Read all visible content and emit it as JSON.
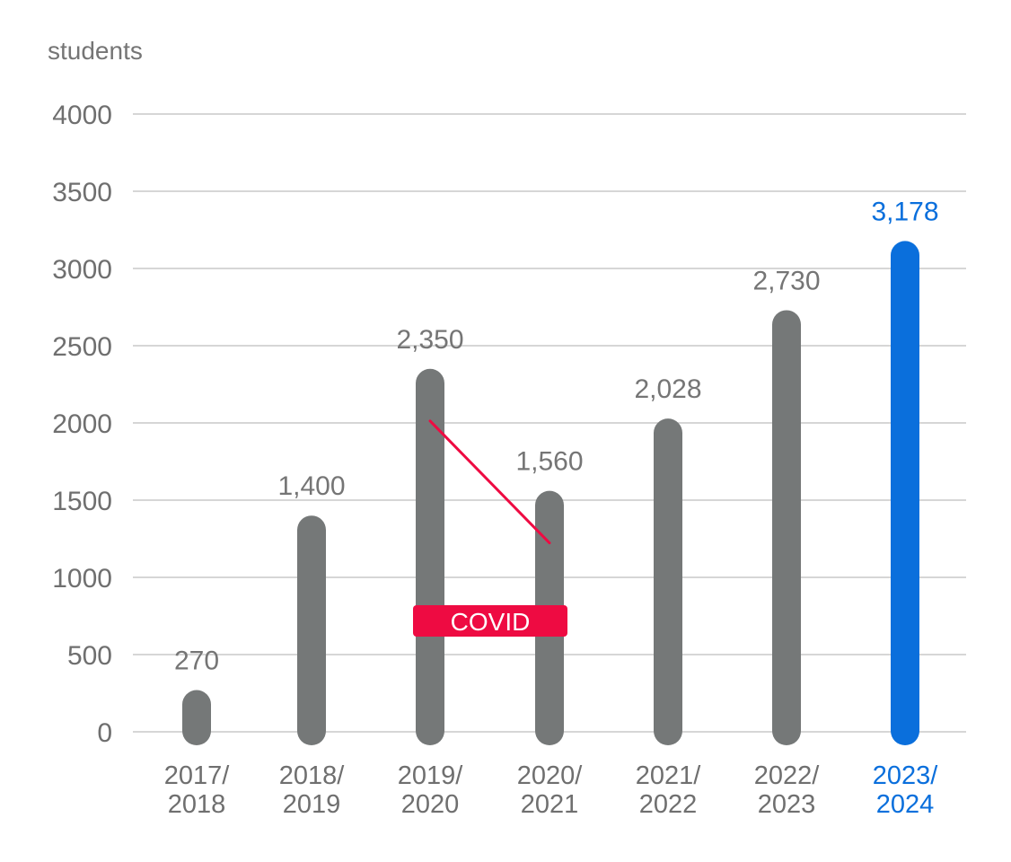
{
  "chart_data": {
    "type": "bar",
    "ylabel": "students",
    "ylim": [
      0,
      4000
    ],
    "yticks": [
      0,
      500,
      1000,
      1500,
      2000,
      2500,
      3000,
      3500,
      4000
    ],
    "grid": true,
    "categories": [
      [
        "2017/",
        "2018"
      ],
      [
        "2018/",
        "2019"
      ],
      [
        "2019/",
        "2020"
      ],
      [
        "2020/",
        "2021"
      ],
      [
        "2021/",
        "2022"
      ],
      [
        "2022/",
        "2023"
      ],
      [
        "2023/",
        "2024"
      ]
    ],
    "values": [
      270,
      1400,
      2350,
      1560,
      2028,
      2730,
      3178
    ],
    "value_labels": [
      "270",
      "1,400",
      "2,350",
      "1,560",
      "2,028",
      "2,730",
      "3,178"
    ],
    "highlight_index": 6,
    "annotation": {
      "text": "COVID",
      "from_index": 2,
      "to_index": 3
    },
    "colors": {
      "bar": "#757878",
      "highlight": "#0a6fdc",
      "annotation": "#ee0b42",
      "grid": "#bdbdbd",
      "axis_text": "#6f6f6f"
    }
  }
}
